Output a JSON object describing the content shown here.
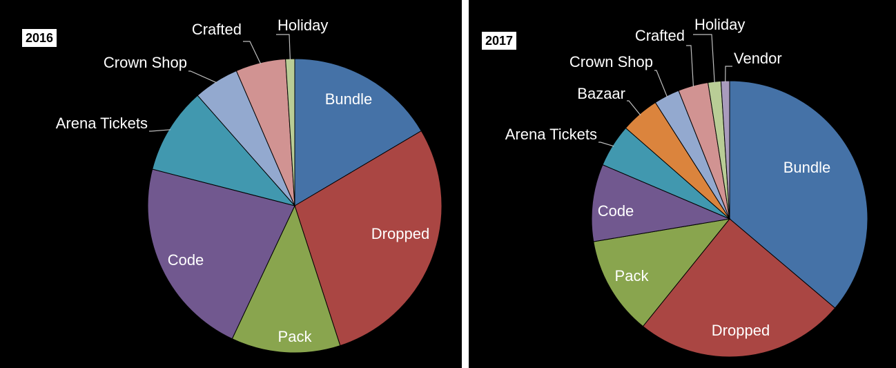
{
  "colors": {
    "Bundle": "#4572a7",
    "Dropped": "#aa4643",
    "Pack": "#89a54e",
    "Code": "#71588f",
    "Arena Tickets": "#4198af",
    "Bazaar": "#db843d",
    "Crown Shop": "#93a9cf",
    "Crafted": "#d19392",
    "Holiday": "#b9cd96",
    "Vendor": "#a99bbd"
  },
  "chart_data": [
    {
      "type": "pie",
      "title": "2016",
      "start_angle_deg": 0,
      "direction": "clockwise",
      "slices": [
        {
          "label": "Bundle",
          "value": 16.5
        },
        {
          "label": "Dropped",
          "value": 28.5
        },
        {
          "label": "Pack",
          "value": 12.0
        },
        {
          "label": "Code",
          "value": 22.0
        },
        {
          "label": "Arena Tickets",
          "value": 9.5
        },
        {
          "label": "Crown Shop",
          "value": 5.0
        },
        {
          "label": "Crafted",
          "value": 5.5
        },
        {
          "label": "Holiday",
          "value": 1.0
        }
      ]
    },
    {
      "type": "pie",
      "title": "2017",
      "start_angle_deg": 0,
      "direction": "clockwise",
      "slices": [
        {
          "label": "Bundle",
          "value": 36.0
        },
        {
          "label": "Dropped",
          "value": 24.5
        },
        {
          "label": "Pack",
          "value": 11.5
        },
        {
          "label": "Code",
          "value": 9.0
        },
        {
          "label": "Arena Tickets",
          "value": 5.0
        },
        {
          "label": "Bazaar",
          "value": 4.5
        },
        {
          "label": "Crown Shop",
          "value": 3.0
        },
        {
          "label": "Crafted",
          "value": 3.5
        },
        {
          "label": "Holiday",
          "value": 1.5
        },
        {
          "label": "Vendor",
          "value": 1.0
        }
      ]
    }
  ]
}
